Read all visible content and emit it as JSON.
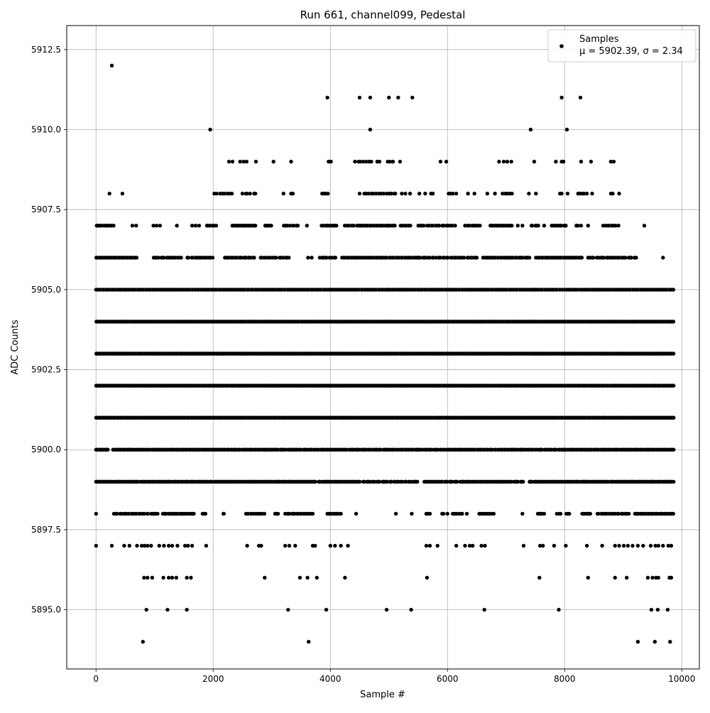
{
  "chart_data": {
    "type": "scatter",
    "title": "Run 661, channel099, Pedestal",
    "xlabel": "Sample #",
    "ylabel": "ADC Counts",
    "xlim": [
      -500,
      10300
    ],
    "ylim": [
      5893.15,
      5913.25
    ],
    "x_ticks": [
      0,
      2000,
      4000,
      6000,
      8000,
      10000
    ],
    "x_tick_labels": [
      "0",
      "2000",
      "4000",
      "6000",
      "8000",
      "10000"
    ],
    "y_ticks": [
      5895.0,
      5897.5,
      5900.0,
      5902.5,
      5905.0,
      5907.5,
      5910.0,
      5912.5
    ],
    "y_tick_labels": [
      "5895.0",
      "5897.5",
      "5900.0",
      "5902.5",
      "5905.0",
      "5907.5",
      "5910.0",
      "5912.5"
    ],
    "grid": true,
    "legend": {
      "position": "top-right",
      "title": "Samples",
      "label": "μ = 5902.39, σ = 2.34"
    },
    "marker_color": "#000000",
    "series": [
      {
        "name": "Samples",
        "level_ranges": [
          {
            "y": 5894,
            "x": [
              800,
              3630,
              9250,
              9540,
              9800
            ]
          },
          {
            "y": 5895,
            "x": [
              860,
              1220,
              1550,
              3280,
              3930,
              4960,
              5380,
              6630,
              7900,
              9480,
              9590,
              9760
            ]
          },
          {
            "y": 5896,
            "x": [
              820,
              880,
              960,
              1150,
              1240,
              1300,
              1370,
              1550,
              1620,
              2880,
              3480,
              3610,
              3770,
              4250,
              5650,
              7570,
              8400,
              8860,
              9060,
              9420,
              9500,
              9560,
              9600,
              9790,
              9820
            ]
          },
          {
            "y": 5897,
            "x": [
              0,
              270,
              480,
              570,
              700,
              780,
              830,
              880,
              940,
              1080,
              1160,
              1240,
              1300,
              1390,
              1520,
              1570,
              1640,
              1880,
              2580,
              2780,
              2820,
              3230,
              3300,
              3400,
              3700,
              3740,
              4000,
              4080,
              4180,
              4300,
              5640,
              5700,
              5830,
              6150,
              6300,
              6380,
              6430,
              6580,
              6640,
              7300,
              7580,
              7630,
              7820,
              8020,
              8380,
              8640,
              8860,
              8930,
              9010,
              9080,
              9160,
              9250,
              9340,
              9470,
              9550,
              9600,
              9680,
              9770,
              9820
            ]
          },
          {
            "y": 5898,
            "x_ranges": [
              [
                0,
                0,
                1
              ],
              [
                300,
                1060,
                24
              ],
              [
                1130,
                1680,
                22
              ],
              [
                1820,
                1880,
                3
              ],
              [
                2160,
                2200,
                2
              ],
              [
                2560,
                2880,
                10
              ],
              [
                3050,
                3110,
                3
              ],
              [
                3230,
                3700,
                18
              ],
              [
                3950,
                4180,
                10
              ],
              [
                4440,
                4440,
                1
              ],
              [
                5120,
                5120,
                1
              ],
              [
                5390,
                5390,
                1
              ],
              [
                5630,
                5700,
                3
              ],
              [
                5900,
                6000,
                3
              ],
              [
                6090,
                6250,
                6
              ],
              [
                6330,
                6330,
                1
              ],
              [
                6540,
                6790,
                10
              ],
              [
                7280,
                7280,
                1
              ],
              [
                7540,
                7650,
                5
              ],
              [
                7860,
                7930,
                3
              ],
              [
                8020,
                8080,
                3
              ],
              [
                8300,
                8450,
                6
              ],
              [
                8560,
                9100,
                20
              ],
              [
                9200,
                9860,
                30
              ]
            ]
          },
          {
            "y": 5899,
            "x_ranges": [
              [
                0,
                3750,
                150
              ],
              [
                3800,
                4500,
                28
              ],
              [
                4560,
                5500,
                30
              ],
              [
                5600,
                7300,
                60
              ],
              [
                7400,
                7960,
                22
              ],
              [
                8000,
                9860,
                80
              ]
            ]
          },
          {
            "y": 5900,
            "x_ranges": [
              [
                0,
                200,
                10
              ],
              [
                280,
                2900,
                110
              ],
              [
                2900,
                5500,
                100
              ],
              [
                5500,
                8000,
                95
              ],
              [
                8000,
                9860,
                80
              ]
            ]
          },
          {
            "y": 5901,
            "x_ranges": [
              [
                0,
                2500,
                140
              ],
              [
                2500,
                5000,
                140
              ],
              [
                5000,
                7500,
                140
              ],
              [
                7500,
                9860,
                130
              ]
            ]
          },
          {
            "y": 5902,
            "x_ranges": [
              [
                0,
                2500,
                130
              ],
              [
                2500,
                5000,
                130
              ],
              [
                5000,
                7500,
                130
              ],
              [
                7500,
                9860,
                120
              ]
            ]
          },
          {
            "y": 5903,
            "x_ranges": [
              [
                0,
                2500,
                160
              ],
              [
                2500,
                5000,
                160
              ],
              [
                5000,
                7500,
                160
              ],
              [
                7500,
                9860,
                150
              ]
            ]
          },
          {
            "y": 5904,
            "x_ranges": [
              [
                0,
                2500,
                140
              ],
              [
                2500,
                5000,
                140
              ],
              [
                5000,
                7500,
                140
              ],
              [
                7500,
                9860,
                130
              ]
            ]
          },
          {
            "y": 5905,
            "x_ranges": [
              [
                0,
                2500,
                105
              ],
              [
                2500,
                5000,
                110
              ],
              [
                5000,
                7500,
                110
              ],
              [
                7500,
                9860,
                95
              ]
            ]
          },
          {
            "y": 5906,
            "x_ranges": [
              [
                0,
                700,
                30
              ],
              [
                980,
                1460,
                16
              ],
              [
                1560,
                2000,
                15
              ],
              [
                2200,
                2700,
                20
              ],
              [
                2800,
                3300,
                15
              ],
              [
                3620,
                3700,
                2
              ],
              [
                3820,
                4100,
                10
              ],
              [
                4200,
                5500,
                45
              ],
              [
                5500,
                6500,
                30
              ],
              [
                6600,
                7400,
                30
              ],
              [
                7500,
                8300,
                35
              ],
              [
                8400,
                9220,
                25
              ],
              [
                9680,
                9680,
                1
              ]
            ]
          },
          {
            "y": 5907,
            "x_ranges": [
              [
                0,
                300,
                12
              ],
              [
                620,
                700,
                2
              ],
              [
                980,
                1100,
                3
              ],
              [
                1380,
                1380,
                1
              ],
              [
                1640,
                1760,
                3
              ],
              [
                1880,
                2050,
                6
              ],
              [
                2320,
                2720,
                18
              ],
              [
                2880,
                3000,
                5
              ],
              [
                3200,
                3460,
                8
              ],
              [
                3600,
                3600,
                1
              ],
              [
                3850,
                4110,
                10
              ],
              [
                4240,
                4400,
                5
              ],
              [
                4450,
                5100,
                28
              ],
              [
                5200,
                5380,
                6
              ],
              [
                5500,
                5750,
                8
              ],
              [
                5800,
                6130,
                10
              ],
              [
                6300,
                6560,
                8
              ],
              [
                6730,
                7100,
                15
              ],
              [
                7200,
                7280,
                2
              ],
              [
                7430,
                7550,
                5
              ],
              [
                7650,
                7660,
                1
              ],
              [
                7780,
                8030,
                10
              ],
              [
                8200,
                8280,
                3
              ],
              [
                8400,
                8400,
                1
              ],
              [
                8650,
                8920,
                8
              ],
              [
                9360,
                9360,
                1
              ]
            ]
          },
          {
            "y": 5908,
            "x": [
              230,
              450,
              2020,
              2060,
              2120,
              2160,
              2190,
              2240,
              2280,
              2320,
              2500,
              2560,
              2580,
              2630,
              2700,
              2720,
              3200,
              3330,
              3360,
              3860,
              3890,
              3920,
              3960,
              4500,
              4580,
              4610,
              4650,
              4700,
              4730,
              4780,
              4830,
              4870,
              4910,
              4960,
              5000,
              5040,
              5090,
              5110,
              5220,
              5280,
              5360,
              5520,
              5620,
              5720,
              5750,
              6020,
              6050,
              6090,
              6150,
              6350,
              6460,
              6680,
              6810,
              6940,
              6990,
              7020,
              7060,
              7100,
              7390,
              7510,
              7920,
              7950,
              8050,
              8230,
              8260,
              8300,
              8330,
              8380,
              8470,
              8790,
              8820,
              8930
            ]
          },
          {
            "y": 5909,
            "x": [
              2270,
              2330,
              2460,
              2520,
              2570,
              2730,
              3030,
              3330,
              3970,
              4010,
              4420,
              4480,
              4510,
              4560,
              4610,
              4660,
              4700,
              4800,
              4840,
              4980,
              5020,
              5070,
              5190,
              5880,
              5980,
              6880,
              6960,
              7020,
              7090,
              7480,
              7850,
              7950,
              7980,
              8280,
              8450,
              8790,
              8840
            ]
          },
          {
            "y": 5910,
            "x": [
              1950,
              4680,
              7420,
              8040
            ]
          },
          {
            "y": 5911,
            "x": [
              3950,
              4500,
              4680,
              5000,
              5160,
              5400,
              7950,
              8270
            ]
          },
          {
            "y": 5912,
            "x": [
              270
            ]
          }
        ]
      }
    ]
  }
}
